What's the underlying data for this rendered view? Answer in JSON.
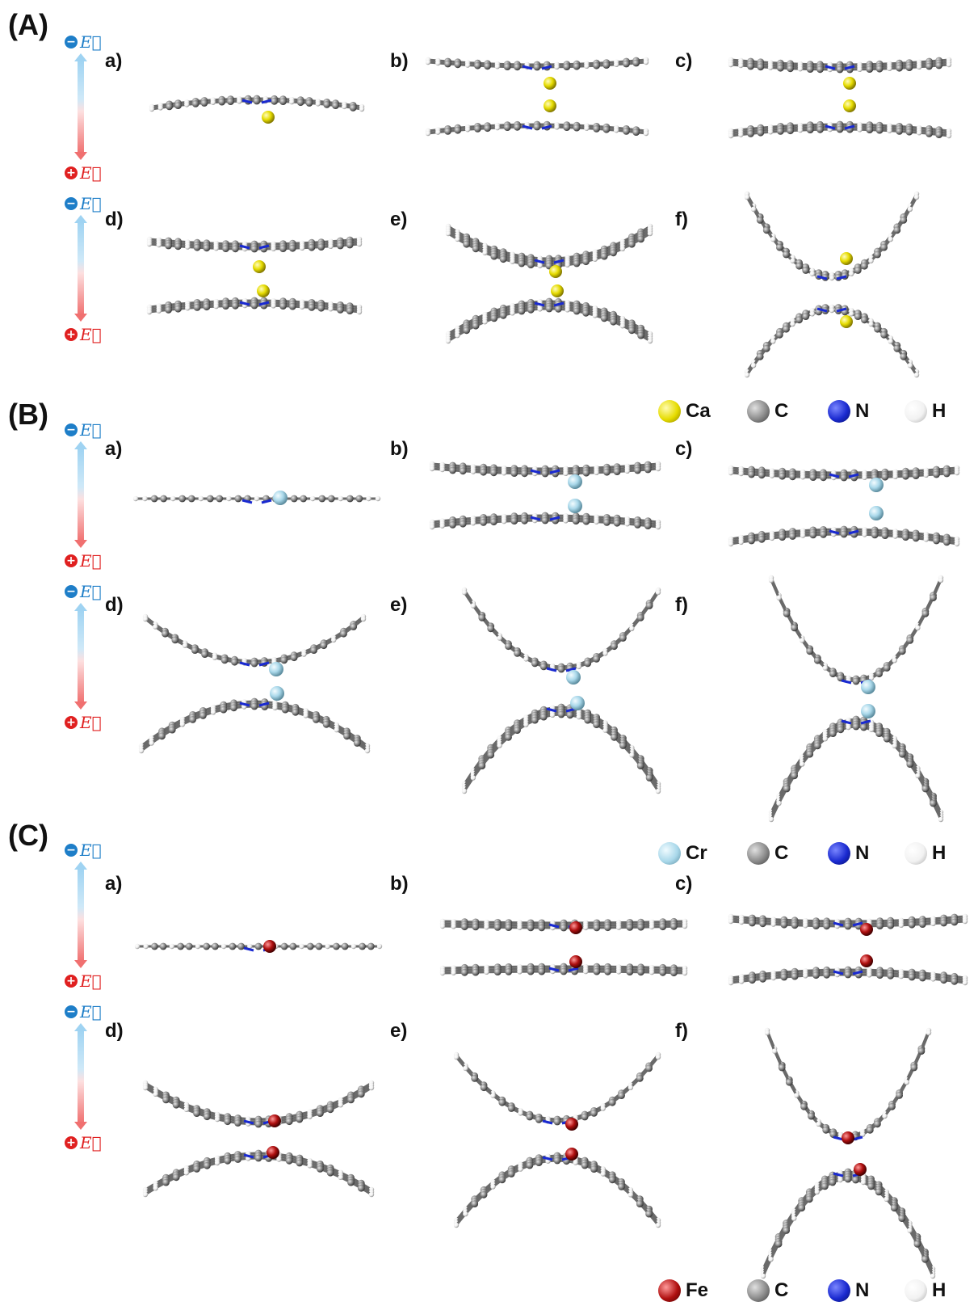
{
  "sections": [
    {
      "id": "A",
      "label": "(A)",
      "panels": [
        "a)",
        "b)",
        "c)",
        "d)",
        "e)",
        "f)"
      ],
      "legend": [
        {
          "symbol": "Ca",
          "color": "#e6dc00"
        },
        {
          "symbol": "C",
          "color": "#8a8a8a"
        },
        {
          "symbol": "N",
          "color": "#1a2ad0"
        },
        {
          "symbol": "H",
          "color": "#f2f2f2"
        }
      ]
    },
    {
      "id": "B",
      "label": "(B)",
      "panels": [
        "a)",
        "b)",
        "c)",
        "d)",
        "e)",
        "f)"
      ],
      "legend": [
        {
          "symbol": "Cr",
          "color": "#a9d8ea"
        },
        {
          "symbol": "C",
          "color": "#8a8a8a"
        },
        {
          "symbol": "N",
          "color": "#1a2ad0"
        },
        {
          "symbol": "H",
          "color": "#f2f2f2"
        }
      ]
    },
    {
      "id": "C",
      "label": "(C)",
      "panels": [
        "a)",
        "b)",
        "c)",
        "d)",
        "e)",
        "f)"
      ],
      "legend": [
        {
          "symbol": "Fe",
          "color": "#b01010"
        },
        {
          "symbol": "C",
          "color": "#8a8a8a"
        },
        {
          "symbol": "N",
          "color": "#1a2ad0"
        },
        {
          "symbol": "H",
          "color": "#f2f2f2"
        }
      ]
    }
  ],
  "field": {
    "neg_label": "E⃗",
    "pos_label": "E⃗",
    "neg_color": "#1e7ec8",
    "pos_color": "#e02020"
  }
}
